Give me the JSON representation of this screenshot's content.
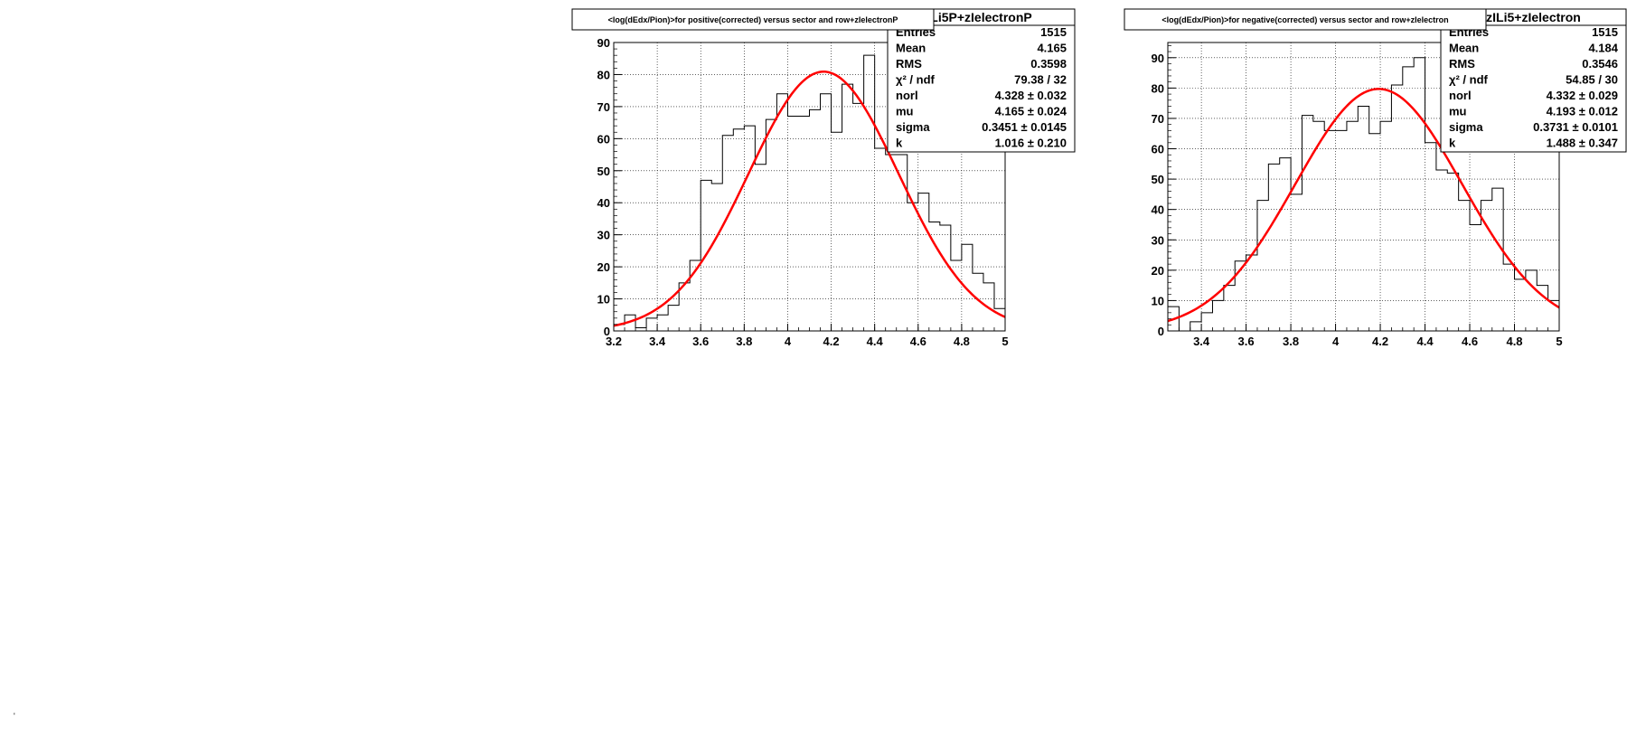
{
  "chart_data": [
    {
      "type": "bar",
      "title": "<log(dEdx/Pion)>for positive(corrected) versus sector and row+zIelectronP",
      "stats_name": "Li5P+zIelectronP",
      "xlim": [
        3.2,
        5.0
      ],
      "ylim": [
        0,
        90
      ],
      "xticks": [
        3.2,
        3.4,
        3.6,
        3.8,
        4.0,
        4.2,
        4.4,
        4.6,
        4.8,
        5.0
      ],
      "xtick_labels": [
        "3.2",
        "3.4",
        "3.6",
        "3.8",
        "4",
        "4.2",
        "4.4",
        "4.6",
        "4.8",
        "5"
      ],
      "yticks": [
        0,
        10,
        20,
        30,
        40,
        50,
        60,
        70,
        80,
        90
      ],
      "grid": true,
      "bin_width": 0.05,
      "bin_edges_start": 3.2,
      "values": [
        2,
        5,
        1,
        4,
        5,
        8,
        15,
        22,
        47,
        46,
        61,
        63,
        64,
        52,
        66,
        74,
        67,
        67,
        69,
        74,
        62,
        77,
        71,
        86,
        57,
        55,
        55,
        40,
        43,
        34,
        33,
        22,
        27,
        18,
        15,
        7
      ],
      "fit": {
        "norm": 80.9,
        "mu": 4.165,
        "sigma": 0.3451,
        "color": "#ff0000"
      },
      "stats": [
        {
          "label": "Entries",
          "value": "1515"
        },
        {
          "label": "Mean",
          "value": "4.165"
        },
        {
          "label": "RMS",
          "value": "0.3598"
        },
        {
          "label": "χ² / ndf",
          "value": "79.38 / 32"
        },
        {
          "label": "norl",
          "value": "4.328 ± 0.032"
        },
        {
          "label": "mu",
          "value": "4.165 ± 0.024"
        },
        {
          "label": "sigma",
          "value": "0.3451 ± 0.0145"
        },
        {
          "label": "k",
          "value": "1.016 ± 0.210"
        }
      ]
    },
    {
      "type": "bar",
      "title": "<log(dEdx/Pion)>for negative(corrected) versus sector and row+zIelectron",
      "stats_name": "zILi5+zIelectron",
      "xlim": [
        3.25,
        5.0
      ],
      "ylim": [
        0,
        95
      ],
      "xticks": [
        3.4,
        3.6,
        3.8,
        4.0,
        4.2,
        4.4,
        4.6,
        4.8,
        5.0
      ],
      "xtick_labels": [
        "3.4",
        "3.6",
        "3.8",
        "4",
        "4.2",
        "4.4",
        "4.6",
        "4.8",
        "5"
      ],
      "yticks": [
        0,
        10,
        20,
        30,
        40,
        50,
        60,
        70,
        80,
        90
      ],
      "grid": true,
      "bin_width": 0.05,
      "bin_edges_start": 3.25,
      "values": [
        8,
        0,
        3,
        6,
        10,
        15,
        23,
        25,
        43,
        55,
        57,
        45,
        71,
        69,
        66,
        66,
        69,
        74,
        65,
        69,
        81,
        87,
        90,
        62,
        53,
        52,
        43,
        35,
        43,
        47,
        22,
        17,
        20,
        15,
        10
      ],
      "fit": {
        "norm": 79.7,
        "mu": 4.193,
        "sigma": 0.3731,
        "color": "#ff0000"
      },
      "stats": [
        {
          "label": "Entries",
          "value": "1515"
        },
        {
          "label": "Mean",
          "value": "4.184"
        },
        {
          "label": "RMS",
          "value": "0.3546"
        },
        {
          "label": "χ² / ndf",
          "value": "54.85 / 30"
        },
        {
          "label": "norl",
          "value": "4.332 ± 0.029"
        },
        {
          "label": "mu",
          "value": "4.193 ± 0.012"
        },
        {
          "label": "sigma",
          "value": "0.3731 ± 0.0101"
        },
        {
          "label": "k",
          "value": "1.488 ± 0.347"
        }
      ]
    }
  ]
}
